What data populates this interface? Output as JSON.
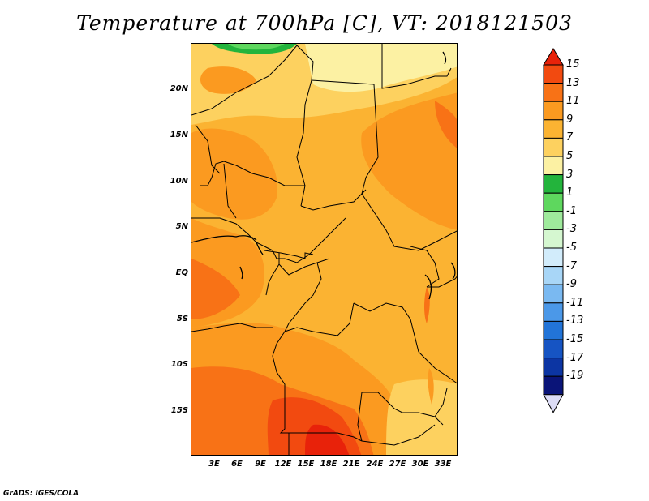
{
  "title": "Temperature at 700hPa [C], VT: 2018121503",
  "credit": "GrADS: IGES/COLA",
  "map": {
    "lat_labels": [
      "20N",
      "15N",
      "10N",
      "5N",
      "EQ",
      "5S",
      "10S",
      "15S"
    ],
    "lon_labels": [
      "3E",
      "6E",
      "9E",
      "12E",
      "15E",
      "18E",
      "21E",
      "24E",
      "27E",
      "30E",
      "33E"
    ]
  },
  "colorbar": {
    "labels": [
      "15",
      "13",
      "11",
      "9",
      "7",
      "5",
      "3",
      "1",
      "-1",
      "-3",
      "-5",
      "-7",
      "-9",
      "-11",
      "-13",
      "-15",
      "-17",
      "-19"
    ],
    "colors": [
      "#e8220a",
      "#f24a10",
      "#f87216",
      "#fb9a20",
      "#fbb332",
      "#fdd15f",
      "#fcf1a3",
      "#23b43c",
      "#5ed75e",
      "#9fea9c",
      "#d5f7d0",
      "#d2ecfb",
      "#a8d6f7",
      "#7ab9f1",
      "#4b98e8",
      "#2274d8",
      "#1654c3",
      "#0c35a3",
      "#0a1478",
      "#dcdcf6"
    ]
  }
}
